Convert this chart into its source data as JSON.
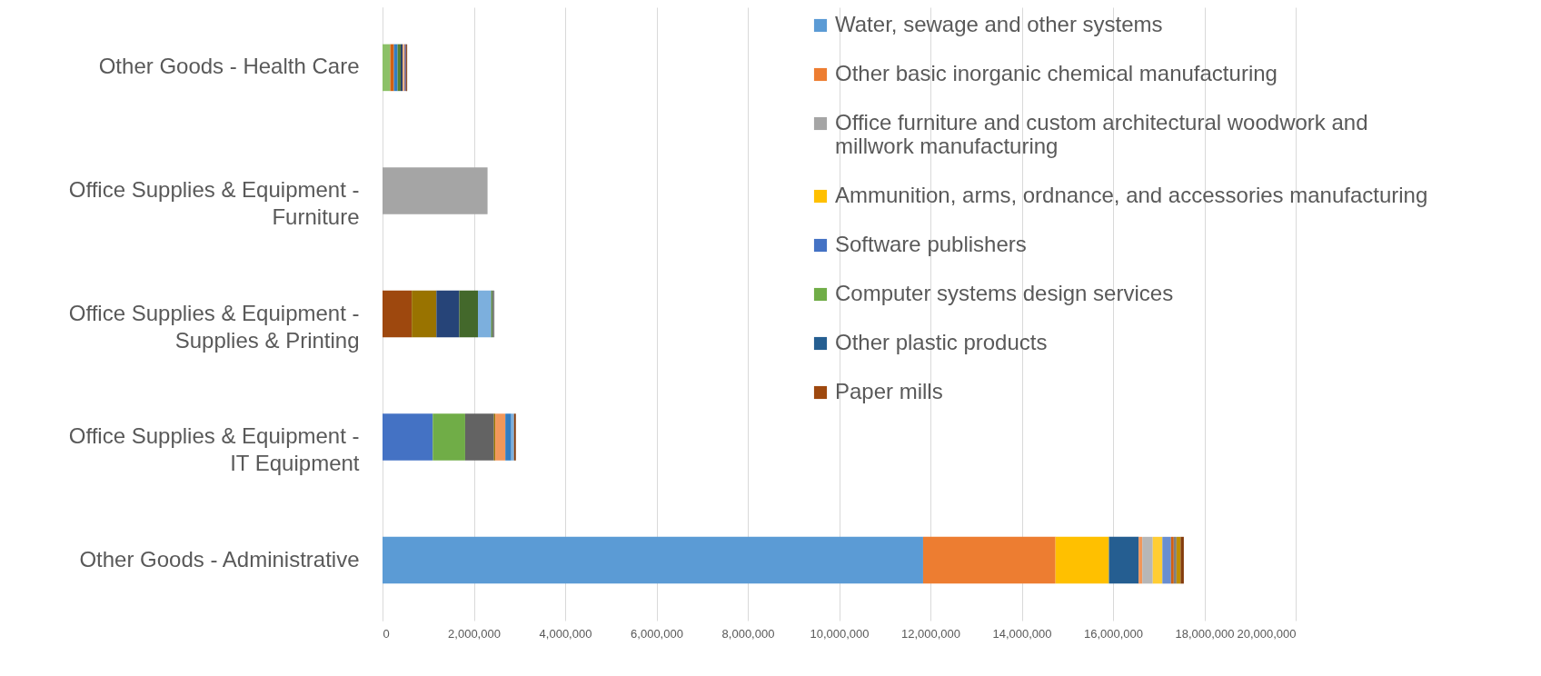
{
  "chart_data": {
    "type": "bar",
    "orientation": "horizontal",
    "stacked": true,
    "categories": [
      "Other Goods - Health Care",
      "Office Supplies & Equipment - Furniture",
      "Office Supplies & Equipment - Supplies & Printing",
      "Office Supplies & Equipment - IT Equipment",
      "Other Goods - Administrative"
    ],
    "series": [
      {
        "name": "Water, sewage and other systems",
        "color": "#5b9bd5",
        "values": [
          null,
          null,
          null,
          null,
          11840000
        ]
      },
      {
        "name": "Other basic inorganic chemical manufacturing",
        "color": "#ed7d31",
        "values": [
          null,
          null,
          null,
          null,
          2900000
        ]
      },
      {
        "name": "Office furniture and custom architectural woodwork and millwork manufacturing",
        "color": "#a5a5a5",
        "values": [
          null,
          2300000,
          null,
          null,
          null
        ]
      },
      {
        "name": "Ammunition, arms, ordnance, and accessories manufacturing",
        "color": "#ffc000",
        "values": [
          null,
          null,
          null,
          null,
          1170000
        ]
      },
      {
        "name": "Software publishers",
        "color": "#4472c4",
        "values": [
          null,
          null,
          null,
          1100000,
          null
        ]
      },
      {
        "name": "Computer systems design services",
        "color": "#70ad47",
        "values": [
          null,
          null,
          null,
          710000,
          null
        ]
      },
      {
        "name": "Other plastic products",
        "color": "#255e91",
        "values": [
          null,
          null,
          null,
          null,
          650000
        ]
      },
      {
        "name": "Paper mills",
        "color": "#9e480e",
        "values": [
          null,
          null,
          640000,
          null,
          null
        ]
      },
      {
        "color": "#636363",
        "values": [
          null,
          null,
          null,
          630000,
          null
        ]
      },
      {
        "color": "#997300",
        "values": [
          null,
          null,
          540000,
          30000,
          null
        ]
      },
      {
        "color": "#264478",
        "values": [
          null,
          null,
          500000,
          null,
          null
        ]
      },
      {
        "color": "#43682b",
        "values": [
          null,
          null,
          410000,
          null,
          null
        ]
      },
      {
        "color": "#f1975a",
        "values": [
          null,
          null,
          null,
          220000,
          80000
        ]
      },
      {
        "color": "#b7b7b7",
        "values": [
          null,
          null,
          null,
          null,
          230000
        ]
      },
      {
        "color": "#ffcd33",
        "values": [
          null,
          null,
          null,
          null,
          210000
        ]
      },
      {
        "color": "#698ed0",
        "values": [
          null,
          null,
          null,
          null,
          190000
        ]
      },
      {
        "color": "#8cc168",
        "values": [
          170000,
          null,
          null,
          null,
          null
        ]
      },
      {
        "color": "#d26012",
        "values": [
          80000,
          null,
          null,
          null,
          60000
        ]
      },
      {
        "color": "#327dc2",
        "values": [
          80000,
          null,
          null,
          130000,
          null
        ]
      },
      {
        "color": "#7cafdd",
        "values": [
          null,
          null,
          290000,
          60000,
          null
        ]
      },
      {
        "color": "#548235",
        "values": [
          70000,
          null,
          30000,
          null,
          null
        ]
      },
      {
        "color": "#7f7f7f",
        "values": [
          null,
          null,
          40000,
          null,
          60000
        ]
      },
      {
        "color": "#1f3864",
        "values": [
          40000,
          null,
          null,
          null,
          null
        ]
      },
      {
        "color": "#f4b183",
        "values": [
          40000,
          null,
          null,
          null,
          null
        ]
      },
      {
        "color": "#bf9000",
        "values": [
          null,
          null,
          null,
          null,
          90000
        ]
      },
      {
        "color": "#7e6e8f",
        "values": [
          40000,
          null,
          null,
          null,
          null
        ]
      },
      {
        "color": "#843c0c",
        "values": [
          20000,
          null,
          null,
          40000,
          70000
        ]
      }
    ],
    "xlim": [
      0,
      20000000
    ],
    "xticks": [
      0,
      {
        "value": 2000000,
        "label": "2,000,000"
      },
      {
        "value": 4000000,
        "label": "4,000,000"
      },
      {
        "value": 6000000,
        "label": "6,000,000"
      },
      {
        "value": 8000000,
        "label": "8,000,000"
      },
      {
        "value": 10000000,
        "label": "10,000,000"
      },
      {
        "value": 12000000,
        "label": "12,000,000"
      },
      {
        "value": 14000000,
        "label": "14,000,000"
      },
      {
        "value": 16000000,
        "label": "16,000,000"
      },
      {
        "value": 18000000,
        "label": "18,000,000"
      },
      {
        "value": 20000000,
        "label": "20,000,000"
      }
    ],
    "grid": "x",
    "legend": "top right"
  }
}
